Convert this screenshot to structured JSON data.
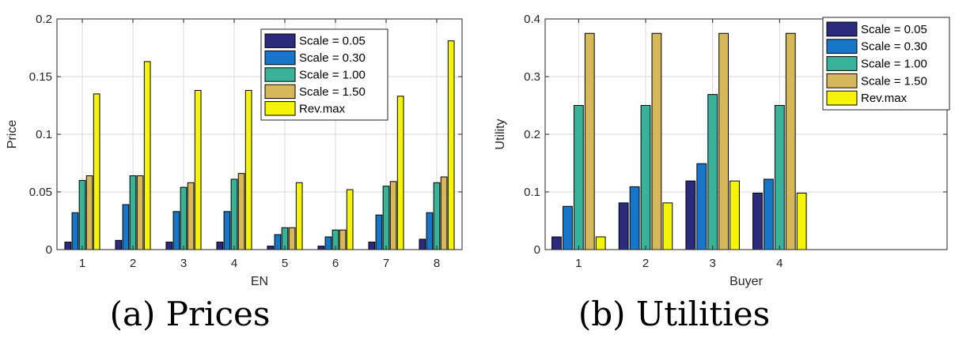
{
  "chart_data": [
    {
      "type": "bar",
      "xlabel": "EN",
      "ylabel": "Price",
      "caption": "(a)  Prices",
      "categories": [
        "1",
        "2",
        "3",
        "4",
        "5",
        "6",
        "7",
        "8"
      ],
      "ylim": [
        0,
        0.2
      ],
      "yticks": [
        0,
        0.05,
        0.1,
        0.15,
        0.2
      ],
      "ytick_labels": [
        "0",
        "0.05",
        "0.1",
        "0.15",
        "0.2"
      ],
      "grid": true,
      "legend_position": "top-right",
      "series": [
        {
          "name": "Scale = 0.05",
          "color": "#2c2a7c",
          "values": [
            0.0065,
            0.008,
            0.0065,
            0.0065,
            0.003,
            0.003,
            0.0065,
            0.009
          ]
        },
        {
          "name": "Scale = 0.30",
          "color": "#1677c8",
          "values": [
            0.032,
            0.039,
            0.033,
            0.033,
            0.013,
            0.011,
            0.03,
            0.032
          ]
        },
        {
          "name": "Scale = 1.00",
          "color": "#38b39a",
          "values": [
            0.06,
            0.064,
            0.054,
            0.061,
            0.019,
            0.017,
            0.055,
            0.058
          ]
        },
        {
          "name": "Scale = 1.50",
          "color": "#d6b85a",
          "values": [
            0.064,
            0.064,
            0.058,
            0.066,
            0.019,
            0.017,
            0.059,
            0.063
          ]
        },
        {
          "name": "Rev.max",
          "color": "#f4f406",
          "values": [
            0.135,
            0.163,
            0.138,
            0.138,
            0.058,
            0.052,
            0.133,
            0.181
          ]
        }
      ]
    },
    {
      "type": "bar",
      "xlabel": "Buyer",
      "ylabel": "Utility",
      "caption": "(b)  Utilities",
      "categories": [
        "1",
        "2",
        "3",
        "4"
      ],
      "xlim_slots": 6,
      "ylim": [
        0,
        0.4
      ],
      "yticks": [
        0,
        0.1,
        0.2,
        0.3,
        0.4
      ],
      "ytick_labels": [
        "0",
        "0.1",
        "0.2",
        "0.3",
        "0.4"
      ],
      "grid": true,
      "legend_position": "top-right",
      "series": [
        {
          "name": "Scale = 0.05",
          "color": "#2c2a7c",
          "values": [
            0.022,
            0.081,
            0.119,
            0.098
          ]
        },
        {
          "name": "Scale = 0.30",
          "color": "#1677c8",
          "values": [
            0.075,
            0.109,
            0.149,
            0.122
          ]
        },
        {
          "name": "Scale = 1.00",
          "color": "#38b39a",
          "values": [
            0.25,
            0.25,
            0.269,
            0.25
          ]
        },
        {
          "name": "Scale = 1.50",
          "color": "#d6b85a",
          "values": [
            0.375,
            0.375,
            0.375,
            0.375
          ]
        },
        {
          "name": "Rev.max",
          "color": "#f4f406",
          "values": [
            0.022,
            0.081,
            0.119,
            0.098
          ]
        }
      ]
    }
  ]
}
